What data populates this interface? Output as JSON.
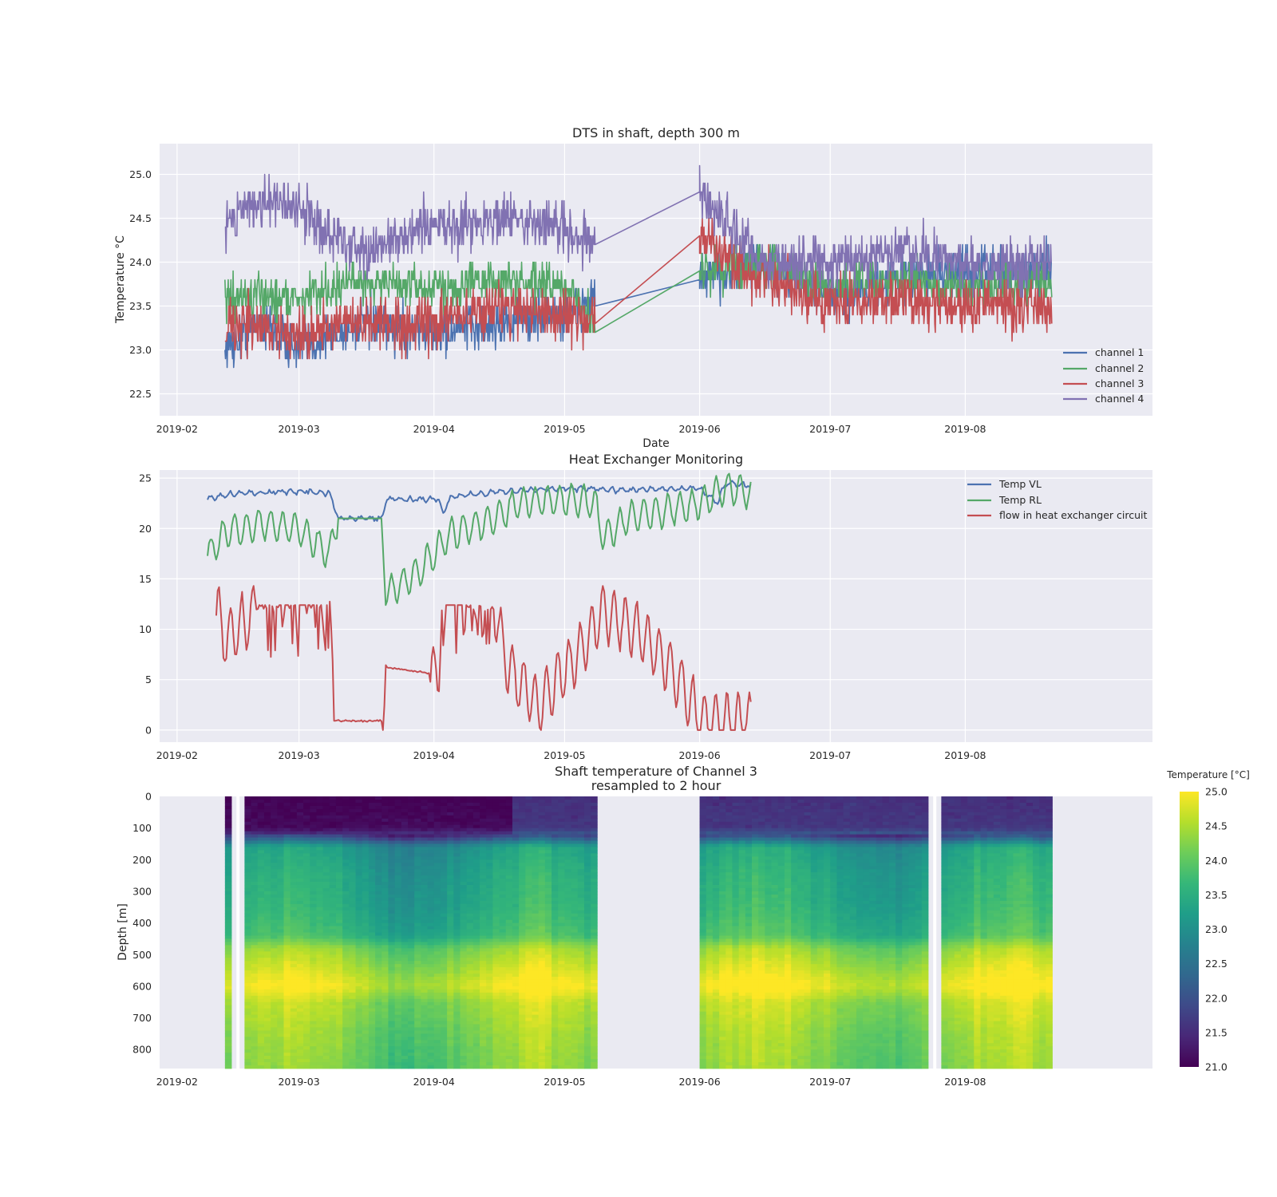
{
  "colors": {
    "axes_bg": "#EAEAF2",
    "grid": "#FFFFFF",
    "series_blue": "#4C72B0",
    "series_green": "#55A868",
    "series_red": "#C44E52",
    "series_purple": "#8172B2",
    "viridis": [
      "#440154",
      "#482878",
      "#3E4A89",
      "#31688E",
      "#26828E",
      "#1F9E89",
      "#35B779",
      "#6DCD59",
      "#B4DE2C",
      "#FDE725"
    ]
  },
  "chart_data": [
    {
      "type": "line",
      "title": "DTS in shaft, depth 300 m",
      "xlabel": "Date",
      "ylabel": "Temperature °C",
      "x_ticks": [
        "2019-02",
        "2019-03",
        "2019-04",
        "2019-05",
        "2019-06",
        "2019-07",
        "2019-08"
      ],
      "y_ticks": [
        "22.5",
        "23.0",
        "23.5",
        "24.0",
        "24.5",
        "25.0"
      ],
      "xlim": [
        "2019-01-28",
        "2019-09-13"
      ],
      "ylim": [
        22.25,
        25.35
      ],
      "grid": true,
      "legend": "lower right",
      "data_gap": [
        "2019-05-08",
        "2019-06-01"
      ],
      "series": [
        {
          "name": "channel 1",
          "color": "#4C72B0",
          "points": [
            [
              "2019-02-12",
              23.0
            ],
            [
              "2019-02-20",
              23.3
            ],
            [
              "2019-03-01",
              23.0
            ],
            [
              "2019-03-15",
              23.3
            ],
            [
              "2019-04-01",
              23.2
            ],
            [
              "2019-04-15",
              23.3
            ],
            [
              "2019-05-01",
              23.4
            ],
            [
              "2019-05-08",
              23.6
            ],
            [
              "2019-06-01",
              23.8
            ],
            [
              "2019-06-15",
              24.0
            ],
            [
              "2019-07-01",
              23.6
            ],
            [
              "2019-07-15",
              23.8
            ],
            [
              "2019-08-01",
              23.9
            ],
            [
              "2019-08-21",
              23.9
            ]
          ],
          "noise": 0.5
        },
        {
          "name": "channel 2",
          "color": "#55A868",
          "points": [
            [
              "2019-02-12",
              23.6
            ],
            [
              "2019-03-01",
              23.6
            ],
            [
              "2019-03-15",
              23.8
            ],
            [
              "2019-04-01",
              23.7
            ],
            [
              "2019-04-15",
              23.8
            ],
            [
              "2019-05-01",
              23.7
            ],
            [
              "2019-05-08",
              23.35
            ],
            [
              "2019-06-01",
              23.9
            ],
            [
              "2019-06-15",
              24.0
            ],
            [
              "2019-07-01",
              23.7
            ],
            [
              "2019-07-15",
              23.8
            ],
            [
              "2019-08-01",
              23.7
            ],
            [
              "2019-08-21",
              23.8
            ]
          ],
          "noise": 0.45
        },
        {
          "name": "channel 3",
          "color": "#C44E52",
          "points": [
            [
              "2019-02-12",
              23.3
            ],
            [
              "2019-03-01",
              23.2
            ],
            [
              "2019-03-15",
              23.3
            ],
            [
              "2019-04-01",
              23.3
            ],
            [
              "2019-04-15",
              23.5
            ],
            [
              "2019-05-01",
              23.4
            ],
            [
              "2019-05-08",
              23.3
            ],
            [
              "2019-06-01",
              24.3
            ],
            [
              "2019-06-15",
              23.8
            ],
            [
              "2019-07-01",
              23.5
            ],
            [
              "2019-07-15",
              23.6
            ],
            [
              "2019-08-01",
              23.5
            ],
            [
              "2019-08-21",
              23.5
            ]
          ],
          "noise": 0.55
        },
        {
          "name": "channel 4",
          "color": "#8172B2",
          "points": [
            [
              "2019-02-12",
              24.5
            ],
            [
              "2019-02-20",
              24.7
            ],
            [
              "2019-03-01",
              24.6
            ],
            [
              "2019-03-15",
              24.1
            ],
            [
              "2019-04-01",
              24.4
            ],
            [
              "2019-04-15",
              24.5
            ],
            [
              "2019-05-01",
              24.4
            ],
            [
              "2019-05-08",
              24.2
            ],
            [
              "2019-06-01",
              24.8
            ],
            [
              "2019-06-15",
              24.0
            ],
            [
              "2019-07-01",
              24.0
            ],
            [
              "2019-07-15",
              24.1
            ],
            [
              "2019-08-01",
              24.0
            ],
            [
              "2019-08-21",
              24.0
            ]
          ],
          "noise": 0.55
        }
      ]
    },
    {
      "type": "line",
      "title": "Heat Exchanger Monitoring",
      "xlabel": "",
      "ylabel": "",
      "x_ticks": [
        "2019-02",
        "2019-03",
        "2019-04",
        "2019-05",
        "2019-06",
        "2019-07",
        "2019-08"
      ],
      "y_ticks": [
        "0",
        "5",
        "10",
        "15",
        "20",
        "25"
      ],
      "xlim": [
        "2019-01-28",
        "2019-09-13"
      ],
      "ylim": [
        -1.2,
        25.8
      ],
      "grid": true,
      "legend": "upper right",
      "series": [
        {
          "name": "Temp VL",
          "color": "#4C72B0",
          "points": [
            [
              "2019-02-08",
              23.0
            ],
            [
              "2019-02-15",
              23.5
            ],
            [
              "2019-03-01",
              23.7
            ],
            [
              "2019-03-08",
              23.5
            ],
            [
              "2019-03-10",
              21.0
            ],
            [
              "2019-03-20",
              21.0
            ],
            [
              "2019-03-21",
              22.9
            ],
            [
              "2019-04-02",
              22.9
            ],
            [
              "2019-04-03",
              21.5
            ],
            [
              "2019-04-05",
              23.2
            ],
            [
              "2019-04-15",
              23.6
            ],
            [
              "2019-05-01",
              24.0
            ],
            [
              "2019-05-15",
              23.8
            ],
            [
              "2019-06-01",
              24.0
            ],
            [
              "2019-06-05",
              22.5
            ],
            [
              "2019-06-07",
              24.5
            ],
            [
              "2019-06-13",
              24.2
            ]
          ],
          "noise": 0.3
        },
        {
          "name": "Temp RL",
          "color": "#55A868",
          "points": [
            [
              "2019-02-08",
              17.2
            ],
            [
              "2019-02-12",
              19.5
            ],
            [
              "2019-02-20",
              20.5
            ],
            [
              "2019-03-01",
              20.0
            ],
            [
              "2019-03-08",
              17.5
            ],
            [
              "2019-03-10",
              21.0
            ],
            [
              "2019-03-20",
              21.0
            ],
            [
              "2019-03-21",
              13.5
            ],
            [
              "2019-03-28",
              15.5
            ],
            [
              "2019-04-05",
              19.5
            ],
            [
              "2019-04-15",
              21.0
            ],
            [
              "2019-04-20",
              22.5
            ],
            [
              "2019-05-01",
              23.0
            ],
            [
              "2019-05-08",
              22.5
            ],
            [
              "2019-05-10",
              19.0
            ],
            [
              "2019-05-15",
              21.0
            ],
            [
              "2019-06-01",
              22.5
            ],
            [
              "2019-06-07",
              24.0
            ],
            [
              "2019-06-13",
              23.5
            ]
          ],
          "noise": 2.2
        },
        {
          "name": "flow in heat exchanger circuit",
          "color": "#C44E52",
          "points": [
            [
              "2019-02-10",
              12.4
            ],
            [
              "2019-02-12",
              9.0
            ],
            [
              "2019-02-16",
              10.5
            ],
            [
              "2019-02-20",
              12.4
            ],
            [
              "2019-03-08",
              12.4
            ],
            [
              "2019-03-09",
              0.9
            ],
            [
              "2019-03-20",
              0.9
            ],
            [
              "2019-03-21",
              6.2
            ],
            [
              "2019-04-02",
              5.5
            ],
            [
              "2019-04-03",
              14.0
            ],
            [
              "2019-04-10",
              12.0
            ],
            [
              "2019-04-15",
              12.0
            ],
            [
              "2019-04-18",
              6.0
            ],
            [
              "2019-04-25",
              2.5
            ],
            [
              "2019-05-05",
              8.0
            ],
            [
              "2019-05-10",
              12.0
            ],
            [
              "2019-05-20",
              9.0
            ],
            [
              "2019-05-28",
              4.5
            ],
            [
              "2019-06-01",
              1.0
            ],
            [
              "2019-06-13",
              0.8
            ]
          ],
          "noise": 3.5
        }
      ]
    },
    {
      "type": "heatmap",
      "title": "Shaft temperature of Channel 3\nresampled to 2 hour",
      "title_lines": [
        "Shaft temperature of Channel 3",
        "resampled to 2 hour"
      ],
      "xlabel": "",
      "ylabel": "Depth [m]",
      "x_ticks": [
        "2019-02",
        "2019-03",
        "2019-04",
        "2019-05",
        "2019-06",
        "2019-07",
        "2019-08"
      ],
      "y_ticks": [
        "0",
        "100",
        "200",
        "300",
        "400",
        "500",
        "600",
        "700",
        "800"
      ],
      "xlim": [
        "2019-01-28",
        "2019-09-13"
      ],
      "ylim": [
        860,
        0
      ],
      "colorbar": {
        "label": "Temperature [°C]",
        "min": 21.0,
        "max": 25.0,
        "ticks": [
          "21.0",
          "21.5",
          "22.0",
          "22.5",
          "23.0",
          "23.5",
          "24.0",
          "24.5",
          "25.0"
        ],
        "colormap": "viridis"
      },
      "data_ranges": [
        [
          "2019-02-12",
          "2019-05-08"
        ],
        [
          "2019-06-01",
          "2019-08-21"
        ]
      ],
      "missing_columns": [
        "2019-02-15",
        "2019-07-25"
      ],
      "depth_profile_degC": [
        [
          0,
          21.0
        ],
        [
          100,
          21.1
        ],
        [
          125,
          21.7
        ],
        [
          160,
          23.1
        ],
        [
          250,
          23.3
        ],
        [
          350,
          23.4
        ],
        [
          440,
          23.6
        ],
        [
          480,
          24.2
        ],
        [
          560,
          24.6
        ],
        [
          600,
          24.8
        ],
        [
          650,
          24.4
        ],
        [
          750,
          24.2
        ],
        [
          860,
          24.1
        ]
      ]
    }
  ]
}
